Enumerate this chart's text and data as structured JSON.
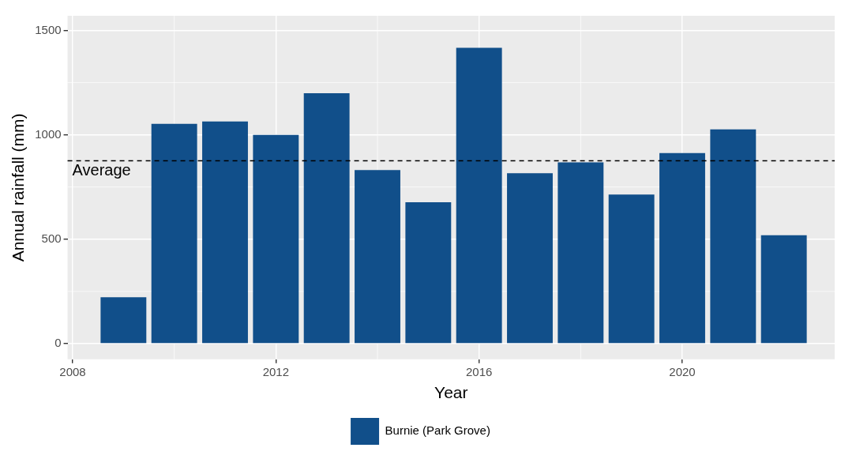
{
  "chart_data": {
    "type": "bar",
    "xlabel": "Year",
    "ylabel": "Annual rainfall (mm)",
    "x": [
      2009,
      2010,
      2011,
      2012,
      2013,
      2014,
      2015,
      2016,
      2017,
      2018,
      2019,
      2020,
      2021,
      2022
    ],
    "series": [
      {
        "name": "Burnie (Park Grove)",
        "color": "#114f8a",
        "values": [
          222,
          1053,
          1064,
          1000,
          1199,
          831,
          677,
          1417,
          816,
          868,
          714,
          913,
          1026,
          519
        ]
      }
    ],
    "xlim": [
      2007.9,
      2023.0
    ],
    "xticks": [
      2008,
      2012,
      2016,
      2020
    ],
    "ylim": [
      -75,
      1570
    ],
    "yticks": [
      0,
      500,
      1000,
      1500
    ],
    "ref_lines": [
      {
        "axis": "y",
        "value": 876,
        "label": "Average",
        "line_style": "dashed",
        "color": "#000000"
      }
    ],
    "grid": true,
    "legend": "bottom"
  }
}
